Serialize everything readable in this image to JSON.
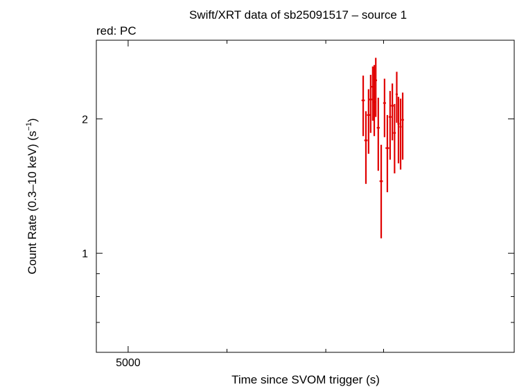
{
  "chart_data": {
    "type": "scatter",
    "title": "Swift/XRT data of sb25091517 – source 1",
    "subtitle": "red: PC",
    "xlabel": "Time since SVOM trigger (s)",
    "ylabel_main": "Count Rate (0.3–10 keV) (s",
    "ylabel_sup": "−1",
    "ylabel_end": ")",
    "x_scale": "log",
    "y_scale": "log",
    "xlim": [
      4000,
      75000
    ],
    "ylim": [
      0.6,
      3.0
    ],
    "x_ticks": [
      {
        "value": 5000,
        "label": "5000"
      }
    ],
    "x_minor_ticks": [
      10000,
      20000,
      30000
    ],
    "y_ticks": [
      {
        "value": 1,
        "label": "1"
      },
      {
        "value": 2,
        "label": "2"
      }
    ],
    "y_minor_ticks": [
      0.7,
      0.8,
      0.9,
      3
    ],
    "grid": false,
    "series": [
      {
        "color": "#e00000",
        "points": [
          {
            "x": 26000,
            "y": 2.2,
            "xerr": 300,
            "ylo": 1.83,
            "yhi": 2.5
          },
          {
            "x": 26500,
            "y": 1.79,
            "xerr": 300,
            "ylo": 1.43,
            "yhi": 2.08
          },
          {
            "x": 27000,
            "y": 2.04,
            "xerr": 300,
            "ylo": 1.67,
            "yhi": 2.33
          },
          {
            "x": 27400,
            "y": 2.21,
            "xerr": 300,
            "ylo": 1.86,
            "yhi": 2.51
          },
          {
            "x": 27800,
            "y": 2.36,
            "xerr": 250,
            "ylo": 1.98,
            "yhi": 2.62
          },
          {
            "x": 28100,
            "y": 2.18,
            "xerr": 250,
            "ylo": 1.83,
            "yhi": 2.64
          },
          {
            "x": 28400,
            "y": 2.44,
            "xerr": 250,
            "ylo": 2.02,
            "yhi": 2.74
          },
          {
            "x": 28900,
            "y": 1.91,
            "xerr": 300,
            "ylo": 1.53,
            "yhi": 2.23
          },
          {
            "x": 29500,
            "y": 1.45,
            "xerr": 350,
            "ylo": 1.08,
            "yhi": 1.75
          },
          {
            "x": 30200,
            "y": 2.17,
            "xerr": 300,
            "ylo": 1.82,
            "yhi": 2.46
          },
          {
            "x": 30800,
            "y": 1.72,
            "xerr": 400,
            "ylo": 1.37,
            "yhi": 2.04
          },
          {
            "x": 31400,
            "y": 2.02,
            "xerr": 300,
            "ylo": 1.62,
            "yhi": 2.31
          },
          {
            "x": 31900,
            "y": 2.14,
            "xerr": 300,
            "ylo": 1.79,
            "yhi": 2.4
          },
          {
            "x": 32400,
            "y": 1.86,
            "xerr": 300,
            "ylo": 1.51,
            "yhi": 2.16
          },
          {
            "x": 32900,
            "y": 2.27,
            "xerr": 250,
            "ylo": 1.96,
            "yhi": 2.55
          },
          {
            "x": 33300,
            "y": 1.95,
            "xerr": 250,
            "ylo": 1.59,
            "yhi": 2.24
          },
          {
            "x": 33800,
            "y": 1.92,
            "xerr": 250,
            "ylo": 1.54,
            "yhi": 2.22
          },
          {
            "x": 34300,
            "y": 1.99,
            "xerr": 300,
            "ylo": 1.62,
            "yhi": 2.29
          }
        ]
      }
    ]
  }
}
